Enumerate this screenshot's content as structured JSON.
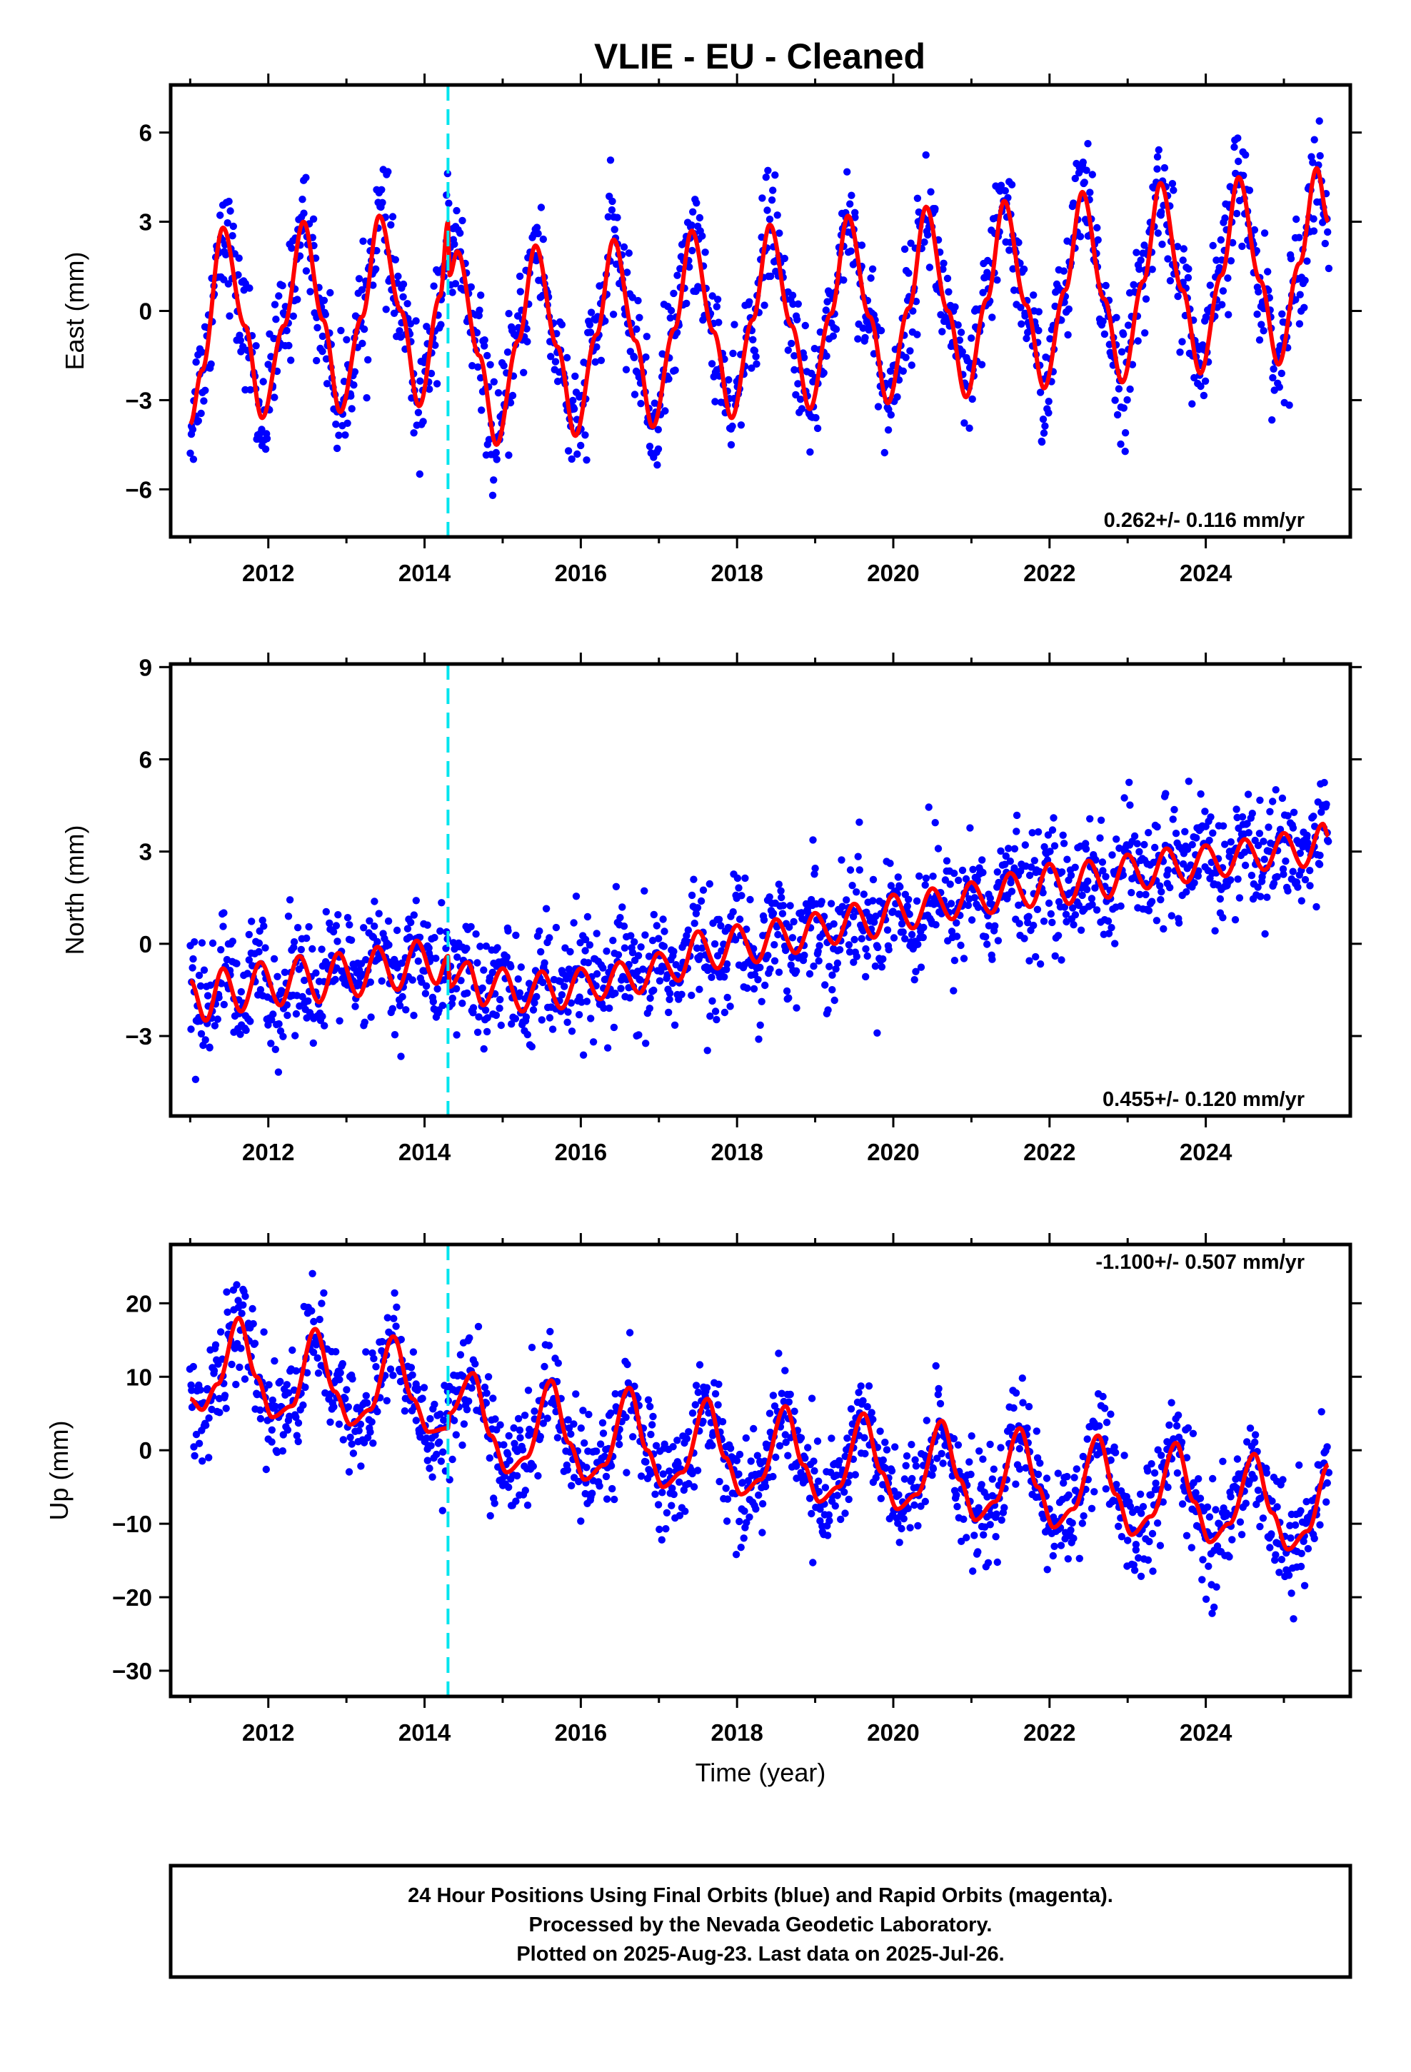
{
  "figure": {
    "title": "VLIE  - EU - Cleaned",
    "xlabel": "Time (year)",
    "footer_lines": [
      "24 Hour Positions Using Final Orbits (blue) and Rapid Orbits (magenta).",
      "Processed by the Nevada Geodetic Laboratory.",
      "Plotted on 2025-Aug-23. Last data on 2025-Jul-26."
    ],
    "colors": {
      "points": "#0000ff",
      "model": "#ff0000",
      "event": "#00e5ee"
    }
  },
  "chart_data": [
    {
      "type": "scatter",
      "panel": "east",
      "ylabel": "East (mm)",
      "rate_label": "0.262+/- 0.116 mm/yr",
      "xlim": [
        2010.75,
        2025.85
      ],
      "ylim": [
        -7.6,
        7.6
      ],
      "xticks": [
        2012,
        2014,
        2016,
        2018,
        2020,
        2022,
        2024
      ],
      "yticks": [
        -6,
        -3,
        0,
        3,
        6
      ],
      "event_line_x": 2014.3,
      "model": {
        "name": "model fit",
        "x": [
          2011.0,
          2011.15,
          2011.42,
          2011.7,
          2011.92,
          2012.2,
          2012.45,
          2012.7,
          2012.92,
          2013.2,
          2013.42,
          2013.7,
          2013.93,
          2014.2,
          2014.3,
          2014.32,
          2014.42,
          2014.7,
          2014.92,
          2015.2,
          2015.42,
          2015.7,
          2015.93,
          2016.2,
          2016.42,
          2016.7,
          2016.92,
          2017.2,
          2017.42,
          2017.7,
          2017.93,
          2018.2,
          2018.42,
          2018.7,
          2018.93,
          2019.2,
          2019.42,
          2019.7,
          2019.93,
          2020.2,
          2020.42,
          2020.7,
          2020.93,
          2021.2,
          2021.42,
          2021.7,
          2021.93,
          2022.2,
          2022.42,
          2022.7,
          2022.93,
          2023.2,
          2023.42,
          2023.7,
          2023.93,
          2024.2,
          2024.42,
          2024.7,
          2024.93,
          2025.2,
          2025.42,
          2025.57
        ],
        "y": [
          -3.8,
          -2.0,
          2.8,
          -0.5,
          -3.6,
          -0.5,
          3.0,
          -0.3,
          -3.4,
          -0.2,
          3.2,
          0.0,
          -3.2,
          0.5,
          3.0,
          1.2,
          2.0,
          -1.5,
          -4.5,
          -1.0,
          2.2,
          -1.2,
          -4.2,
          -0.8,
          2.4,
          -1.0,
          -3.9,
          -0.6,
          2.7,
          -0.7,
          -3.6,
          -0.3,
          2.9,
          -0.5,
          -3.3,
          -0.1,
          3.2,
          -0.2,
          -3.1,
          0.1,
          3.5,
          0.0,
          -2.9,
          0.4,
          3.7,
          0.2,
          -2.6,
          0.7,
          4.0,
          0.4,
          -2.4,
          1.0,
          4.3,
          0.7,
          -2.1,
          1.2,
          4.5,
          1.0,
          -1.8,
          1.6,
          4.8,
          3.0
        ]
      }
    },
    {
      "type": "scatter",
      "panel": "north",
      "ylabel": "North (mm)",
      "rate_label": "0.455+/- 0.120 mm/yr",
      "xlim": [
        2010.75,
        2025.85
      ],
      "ylim": [
        -5.6,
        9.1
      ],
      "xticks": [
        2012,
        2014,
        2016,
        2018,
        2020,
        2022,
        2024
      ],
      "yticks": [
        -3,
        0,
        3,
        6,
        9
      ],
      "event_line_x": 2014.3,
      "model": {
        "name": "model fit",
        "x": [
          2011.0,
          2011.2,
          2011.42,
          2011.65,
          2011.9,
          2012.15,
          2012.4,
          2012.65,
          2012.9,
          2013.15,
          2013.4,
          2013.65,
          2013.9,
          2014.15,
          2014.3,
          2014.32,
          2014.55,
          2014.75,
          2015.0,
          2015.25,
          2015.5,
          2015.75,
          2016.0,
          2016.25,
          2016.5,
          2016.75,
          2017.0,
          2017.25,
          2017.5,
          2017.75,
          2018.0,
          2018.25,
          2018.5,
          2018.75,
          2019.0,
          2019.25,
          2019.5,
          2019.75,
          2020.0,
          2020.25,
          2020.5,
          2020.75,
          2021.0,
          2021.25,
          2021.5,
          2021.75,
          2022.0,
          2022.25,
          2022.5,
          2022.75,
          2023.0,
          2023.25,
          2023.5,
          2023.75,
          2024.0,
          2024.25,
          2024.5,
          2024.75,
          2025.0,
          2025.25,
          2025.5,
          2025.57
        ],
        "y": [
          -1.2,
          -2.5,
          -0.8,
          -2.2,
          -0.6,
          -2.0,
          -0.4,
          -1.9,
          -0.3,
          -1.7,
          -0.1,
          -1.5,
          0.1,
          -1.3,
          -0.4,
          -1.4,
          -0.6,
          -2.0,
          -0.8,
          -2.2,
          -0.9,
          -2.1,
          -0.8,
          -1.8,
          -0.6,
          -1.6,
          -0.3,
          -1.2,
          0.4,
          -0.8,
          0.6,
          -0.6,
          0.8,
          -0.3,
          1.0,
          0.0,
          1.3,
          0.2,
          1.6,
          0.5,
          1.8,
          0.8,
          2.0,
          1.0,
          2.3,
          1.2,
          2.6,
          1.3,
          2.7,
          1.5,
          2.9,
          1.8,
          3.1,
          2.0,
          3.2,
          2.2,
          3.4,
          2.4,
          3.6,
          2.5,
          3.9,
          3.5
        ]
      }
    },
    {
      "type": "scatter",
      "panel": "up",
      "ylabel": "Up (mm)",
      "rate_label": "-1.100+/- 0.507 mm/yr",
      "xlim": [
        2010.75,
        2025.85
      ],
      "ylim": [
        -33.5,
        28.0
      ],
      "xticks": [
        2012,
        2014,
        2016,
        2018,
        2020,
        2022,
        2024
      ],
      "yticks": [
        -30,
        -20,
        -10,
        0,
        10,
        20
      ],
      "event_line_x": 2014.3,
      "model": {
        "name": "model fit",
        "x": [
          2011.0,
          2011.15,
          2011.35,
          2011.62,
          2011.85,
          2012.05,
          2012.3,
          2012.6,
          2012.85,
          2013.05,
          2013.3,
          2013.6,
          2013.85,
          2014.05,
          2014.3,
          2014.32,
          2014.62,
          2014.85,
          2015.05,
          2015.3,
          2015.62,
          2015.85,
          2016.05,
          2016.3,
          2016.62,
          2016.85,
          2017.05,
          2017.3,
          2017.62,
          2017.85,
          2018.05,
          2018.3,
          2018.62,
          2018.85,
          2019.05,
          2019.3,
          2019.62,
          2019.85,
          2020.05,
          2020.3,
          2020.62,
          2020.85,
          2021.05,
          2021.3,
          2021.62,
          2021.85,
          2022.05,
          2022.3,
          2022.62,
          2022.85,
          2023.05,
          2023.3,
          2023.62,
          2023.85,
          2024.05,
          2024.3,
          2024.62,
          2024.85,
          2025.05,
          2025.3,
          2025.57
        ],
        "y": [
          7.0,
          5.5,
          9.0,
          18.0,
          10.0,
          4.5,
          6.0,
          16.5,
          8.0,
          3.5,
          5.5,
          15.5,
          7.0,
          2.5,
          3.0,
          5.0,
          10.5,
          2.0,
          -3.0,
          -1.0,
          9.5,
          1.0,
          -4.0,
          -2.0,
          8.5,
          0.0,
          -5.0,
          -3.0,
          7.0,
          -1.0,
          -6.0,
          -4.0,
          6.0,
          -2.0,
          -7.0,
          -5.0,
          5.0,
          -3.0,
          -8.0,
          -6.0,
          4.0,
          -4.0,
          -9.5,
          -7.0,
          3.0,
          -5.0,
          -10.5,
          -8.0,
          2.0,
          -6.0,
          -11.5,
          -9.0,
          1.0,
          -7.0,
          -12.5,
          -10.0,
          -0.5,
          -8.5,
          -13.5,
          -11.0,
          -2.0
        ]
      }
    }
  ]
}
